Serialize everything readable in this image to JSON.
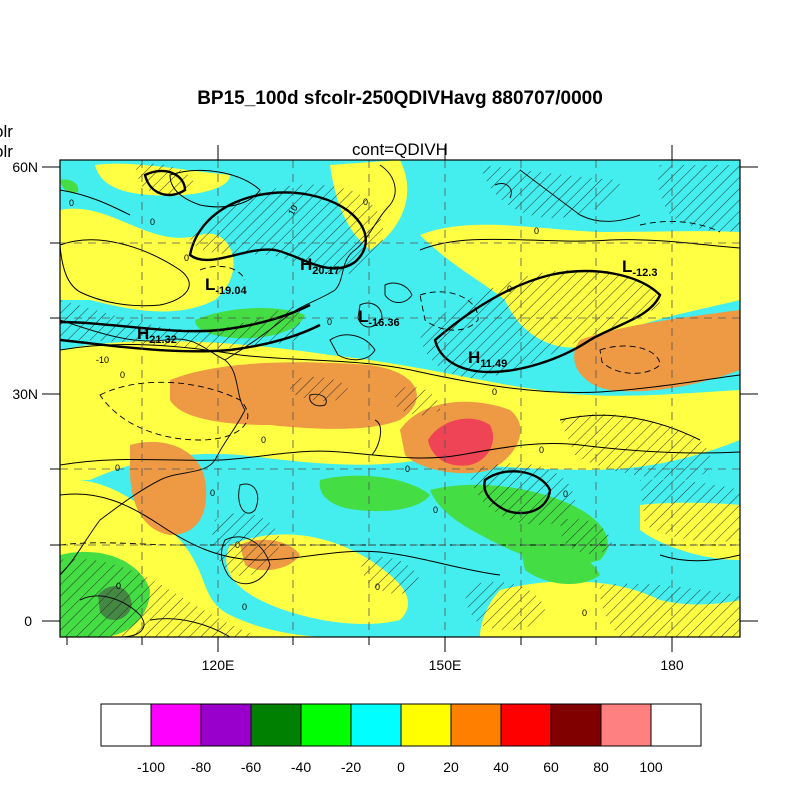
{
  "title": "BP15_100d sfcolr-250QDIVHavg  880707/0000",
  "subtitle": "cont=QDIVH",
  "side_labels": [
    "olr",
    "olr"
  ],
  "x_axis": {
    "ticks": [
      "120E",
      "150E",
      "180"
    ]
  },
  "y_axis": {
    "ticks": [
      "60N",
      "30N",
      "0"
    ]
  },
  "highs_lows": [
    {
      "letter": "L",
      "value": "-19.04"
    },
    {
      "letter": "H",
      "value": "20.17"
    },
    {
      "letter": "L",
      "value": "-12.3"
    },
    {
      "letter": "H",
      "value": "21.32"
    },
    {
      "letter": "L",
      "value": "-16.36"
    },
    {
      "letter": "H",
      "value": "11.49"
    }
  ],
  "contour_labels": [
    "0",
    "10",
    "-10"
  ],
  "colorbar": {
    "labels": [
      "-100",
      "-80",
      "-60",
      "-40",
      "-20",
      "0",
      "20",
      "40",
      "60",
      "80",
      "100"
    ],
    "colors": [
      "#ffffff",
      "#ff00ff",
      "#9900cc",
      "#008000",
      "#00ff00",
      "#00ffff",
      "#ffff00",
      "#ff8000",
      "#ff0000",
      "#800000",
      "#ff8080",
      "#ffffff"
    ]
  },
  "map_colors": {
    "cyan": "#44eeee",
    "yellow": "#ffff44",
    "green": "#44dd44",
    "orange": "#ee9944",
    "red": "#ee4455",
    "darkgreen": "#448844"
  }
}
